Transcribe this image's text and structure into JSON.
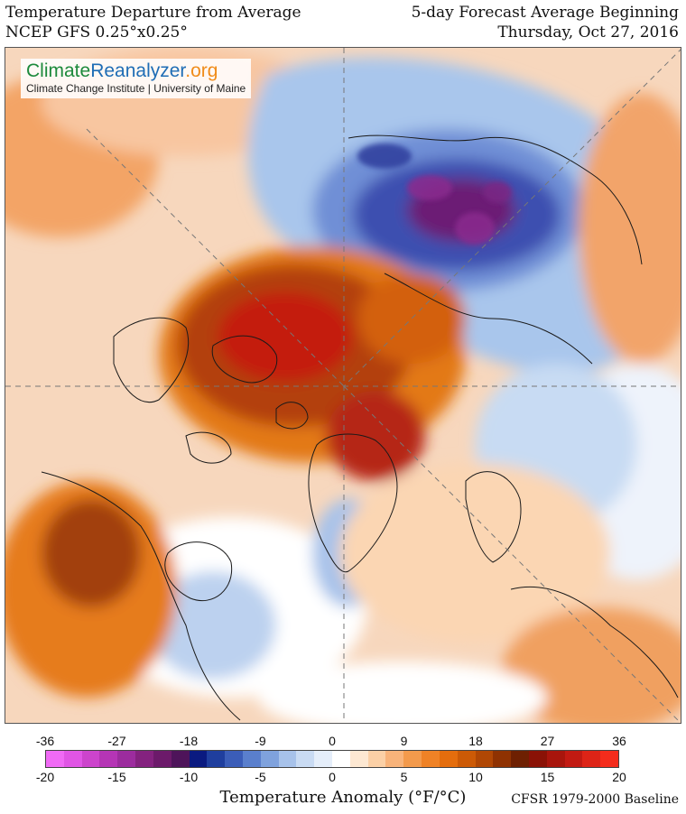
{
  "header": {
    "left_line1": "Temperature Departure from Average",
    "left_line2": "NCEP GFS 0.25°x0.25°",
    "right_line1": "5-day Forecast Average Beginning",
    "right_line2": "Thursday, Oct 27, 2016"
  },
  "brand": {
    "name_part1": "Climate",
    "name_part2": "Reanalyzer",
    "name_part3": ".org",
    "subtitle": "Climate Change Institute | University of Maine"
  },
  "legend": {
    "fahrenheit_ticks": [
      "-36",
      "-27",
      "-18",
      "-9",
      "0",
      "9",
      "18",
      "27",
      "36"
    ],
    "celsius_ticks": [
      "-20",
      "-15",
      "-10",
      "-5",
      "0",
      "5",
      "10",
      "15",
      "20"
    ],
    "colors": [
      "#f06af5",
      "#e055e5",
      "#cc44cc",
      "#b535b5",
      "#9c2c9e",
      "#84227f",
      "#6c1a6a",
      "#4e145a",
      "#0a1a80",
      "#1f3e9e",
      "#3b5db8",
      "#5a7fcd",
      "#7fa2dd",
      "#a7c2ea",
      "#c9dbf3",
      "#e5eefa",
      "#ffffff",
      "#fde8d2",
      "#fbd0a6",
      "#f8b37a",
      "#f39a4c",
      "#ef8226",
      "#e46d0d",
      "#cc5a06",
      "#b04704",
      "#8f3202",
      "#6e2002",
      "#8a1206",
      "#a8150c",
      "#c21a12",
      "#dd2417",
      "#f42c1c"
    ],
    "label": "Temperature Anomaly (°F/°C)",
    "baseline": "CFSR 1979-2000 Baseline"
  }
}
